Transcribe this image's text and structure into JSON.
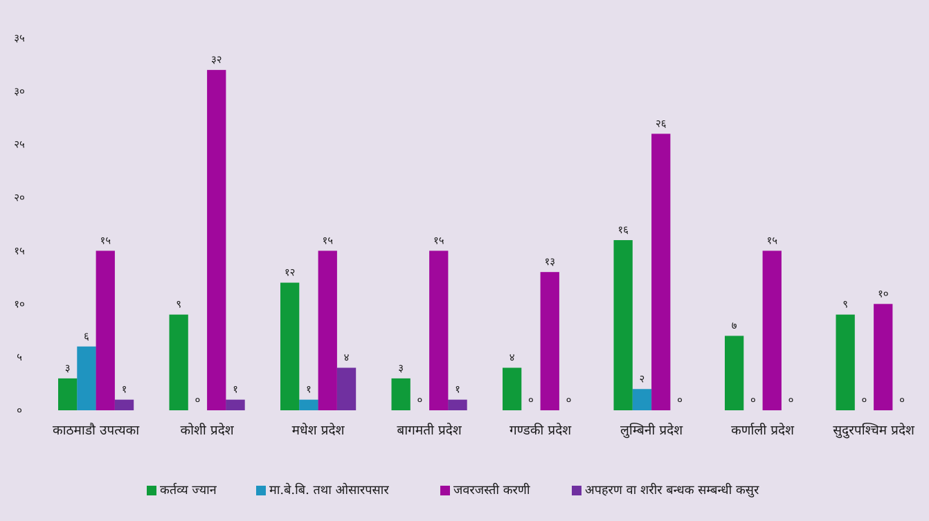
{
  "chart_data": {
    "type": "bar",
    "categories": [
      "काठमाडौ उपत्यका",
      "कोशी प्रदेश",
      "मधेश प्रदेश",
      "बागमती प्रदेश",
      "गण्डकी प्रदेश",
      "लुम्बिनी प्रदेश",
      "कर्णाली प्रदेश",
      "सुदुरपश्चिम प्रदेश"
    ],
    "series": [
      {
        "name": "कर्तव्य ज्यान",
        "color": "#0f9b3a",
        "values": [
          3,
          9,
          12,
          3,
          4,
          16,
          7,
          9
        ],
        "labels": [
          "३",
          "९",
          "१२",
          "३",
          "४",
          "१६",
          "७",
          "९"
        ]
      },
      {
        "name": "मा.बे.बि. तथा ओसारपसार",
        "color": "#1f94c0",
        "values": [
          6,
          0,
          1,
          0,
          0,
          2,
          0,
          0
        ],
        "labels": [
          "६",
          "०",
          "१",
          "०",
          "०",
          "२",
          "०",
          "०"
        ]
      },
      {
        "name": "जवरजस्ती करणी",
        "color": "#a0089c",
        "values": [
          15,
          32,
          15,
          15,
          13,
          26,
          15,
          10
        ],
        "labels": [
          "१५",
          "३२",
          "१५",
          "१५",
          "१३",
          "२६",
          "१५",
          "१०"
        ]
      },
      {
        "name": "अपहरण वा शरीर बन्धक सम्बन्धी कसुर",
        "color": "#7030a0",
        "values": [
          1,
          1,
          4,
          1,
          0,
          0,
          0,
          0
        ],
        "labels": [
          "१",
          "१",
          "४",
          "१",
          "०",
          "०",
          "०",
          "०"
        ]
      }
    ],
    "y_ticks": [
      0,
      5,
      10,
      15,
      20,
      25,
      30,
      35
    ],
    "y_tick_labels": [
      "०",
      "५",
      "१०",
      "१५",
      "२०",
      "२५",
      "३०",
      "३५"
    ],
    "ylim": [
      0,
      35
    ],
    "title": "",
    "xlabel": "",
    "ylabel": "",
    "grid": false,
    "legend": "bottom-center",
    "background": "#e6e0ec"
  }
}
